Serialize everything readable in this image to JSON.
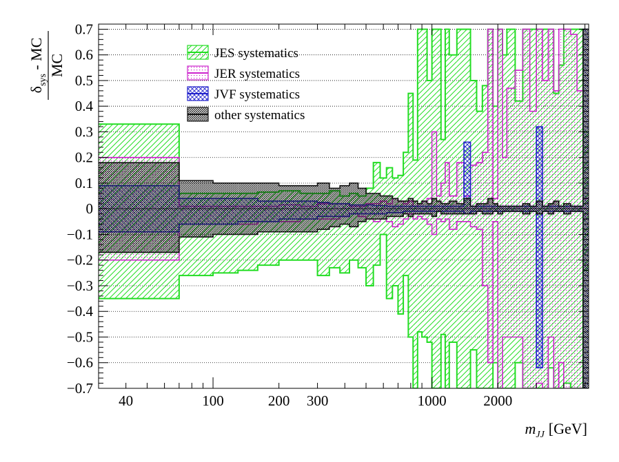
{
  "chart_data": {
    "type": "histogram-band",
    "xlabel": "m_JJ [GeV]",
    "xlabel_main": "m",
    "xlabel_sub": "JJ",
    "xlabel_unit": "[GeV]",
    "ylabel": "(δ_sys - MC)/MC",
    "ylabel_numerator_main": "δ",
    "ylabel_numerator_sub": "sys",
    "ylabel_numerator_rest": " - MC",
    "ylabel_denominator": "MC",
    "x_scale": "log",
    "xlim": [
      30,
      5200
    ],
    "ylim": [
      -0.7,
      0.72
    ],
    "x_ticks": [
      40,
      100,
      200,
      300,
      1000,
      2000
    ],
    "x_tick_labels": [
      "40",
      "100",
      "200",
      "300",
      "1000",
      "2000"
    ],
    "y_ticks": [
      -0.7,
      -0.6,
      -0.5,
      -0.4,
      -0.3,
      -0.2,
      -0.1,
      0,
      0.1,
      0.2,
      0.3,
      0.4,
      0.5,
      0.6,
      0.7
    ],
    "y_tick_labels": [
      "−0.7",
      "−0.6",
      "−0.5",
      "−0.4",
      "−0.3",
      "−0.2",
      "−0.1",
      "0",
      "0.1",
      "0.2",
      "0.3",
      "0.4",
      "0.5",
      "0.6",
      "0.7"
    ],
    "grid": "horizontal dotted",
    "legend_position": "top-left",
    "bin_edges": [
      30,
      70,
      100,
      130,
      160,
      200,
      250,
      300,
      340,
      380,
      420,
      460,
      500,
      540,
      580,
      620,
      660,
      700,
      740,
      780,
      820,
      860,
      900,
      950,
      1000,
      1050,
      1100,
      1150,
      1200,
      1300,
      1400,
      1500,
      1600,
      1700,
      1800,
      1900,
      2000,
      2100,
      2200,
      2400,
      2600,
      2800,
      3000,
      3200,
      3400,
      3600,
      3800,
      4000,
      4300,
      4600,
      4900,
      5200
    ],
    "series": [
      {
        "name": "JES systematics",
        "color": "#22dd22",
        "hatch": "diagonal",
        "upper": [
          0.33,
          0.06,
          0.06,
          0.06,
          0.065,
          0.07,
          0.06,
          0.06,
          0.07,
          0.05,
          0.06,
          0.05,
          0.08,
          0.18,
          0.12,
          0.16,
          0.12,
          0.13,
          0.22,
          0.45,
          0.19,
          0.7,
          0.7,
          0.5,
          0.7,
          0.7,
          0.27,
          0.7,
          0.6,
          0.7,
          0.7,
          0.5,
          0.38,
          0.48,
          0.7,
          0.4,
          0.7,
          0.6,
          0.7,
          0.42,
          0.7,
          0.7,
          0.7,
          0.7,
          0.7,
          0.45,
          0.56,
          0.7,
          0.7,
          0.7,
          0.3
        ],
        "lower": [
          -0.35,
          -0.26,
          -0.25,
          -0.24,
          -0.22,
          -0.2,
          -0.2,
          -0.26,
          -0.23,
          -0.25,
          -0.2,
          -0.23,
          -0.3,
          -0.22,
          -0.1,
          -0.35,
          -0.3,
          -0.41,
          -0.26,
          -0.5,
          -0.7,
          -0.48,
          -0.5,
          -0.52,
          -0.7,
          -0.7,
          -0.49,
          -0.7,
          -0.52,
          -0.7,
          -0.7,
          -0.55,
          -0.7,
          -0.7,
          -0.7,
          -0.6,
          -0.7,
          -0.7,
          -0.7,
          -0.6,
          -0.7,
          -0.7,
          -0.7,
          -0.7,
          -0.62,
          -0.7,
          -0.7,
          -0.68,
          -0.7,
          -0.7,
          -0.24
        ]
      },
      {
        "name": "JER systematics",
        "color": "#cc22cc",
        "hatch": "dots",
        "upper": [
          0.2,
          0.01,
          0.01,
          0.01,
          0.01,
          0.015,
          0.01,
          0.02,
          0.02,
          0.02,
          0.01,
          0.01,
          0.02,
          0.02,
          0.03,
          0.02,
          0.04,
          0.03,
          0.02,
          0.03,
          0.01,
          0.02,
          0.03,
          0.04,
          0.3,
          0.05,
          0.1,
          0.18,
          0.05,
          0.18,
          0.05,
          0.17,
          0.18,
          0.22,
          0.7,
          0.04,
          0.7,
          0.2,
          0.47,
          0.54,
          0.7,
          0.38,
          0.7,
          0.5,
          0.7,
          0.46,
          0.7,
          0.7,
          0.68,
          0.46,
          0.04
        ],
        "lower": [
          -0.2,
          -0.06,
          -0.06,
          -0.06,
          -0.05,
          -0.05,
          -0.04,
          -0.04,
          -0.04,
          -0.03,
          -0.02,
          -0.03,
          -0.04,
          -0.05,
          -0.04,
          -0.05,
          -0.07,
          -0.06,
          -0.04,
          -0.02,
          -0.04,
          -0.03,
          -0.04,
          -0.06,
          -0.1,
          -0.04,
          -0.05,
          -0.04,
          -0.08,
          -0.05,
          -0.05,
          -0.07,
          -0.08,
          -0.3,
          -0.6,
          -0.05,
          -0.7,
          -0.5,
          -0.5,
          -0.5,
          -0.7,
          -0.7,
          -0.68,
          -0.7,
          -0.5,
          -0.7,
          -0.6,
          -0.7,
          -0.7,
          -0.7,
          -0.04
        ]
      },
      {
        "name": "JVF systematics",
        "color": "#2222cc",
        "hatch": "cross",
        "upper": [
          0.09,
          0.04,
          0.04,
          0.04,
          0.03,
          0.03,
          0.03,
          0.025,
          0.02,
          0.02,
          0.015,
          0.015,
          0.015,
          0.012,
          0.012,
          0.01,
          0.01,
          0.01,
          0.01,
          0.01,
          0.01,
          0.01,
          0.01,
          0.01,
          0.01,
          0.01,
          0.01,
          0.01,
          0.01,
          0.01,
          0.26,
          0.01,
          0.01,
          0.01,
          0.01,
          0.01,
          0.01,
          0.01,
          0.01,
          0.01,
          0.01,
          0.01,
          0.32,
          0.01,
          0.01,
          0.01,
          0.01,
          0.01,
          0.01,
          0.01,
          0.7
        ],
        "lower": [
          -0.09,
          -0.06,
          -0.06,
          -0.05,
          -0.05,
          -0.04,
          -0.04,
          -0.03,
          -0.03,
          -0.03,
          -0.02,
          -0.02,
          -0.02,
          -0.02,
          -0.02,
          -0.015,
          -0.015,
          -0.015,
          -0.01,
          -0.01,
          -0.01,
          -0.01,
          -0.01,
          -0.01,
          -0.01,
          -0.01,
          -0.01,
          -0.01,
          -0.01,
          -0.01,
          -0.02,
          -0.01,
          -0.01,
          -0.01,
          -0.01,
          -0.01,
          -0.01,
          -0.01,
          -0.01,
          -0.01,
          -0.01,
          -0.01,
          -0.62,
          -0.01,
          -0.01,
          -0.01,
          -0.01,
          -0.01,
          -0.01,
          -0.01,
          -0.7
        ]
      },
      {
        "name": "other systematics",
        "color": "#111111",
        "hatch": "dense",
        "upper": [
          0.18,
          0.11,
          0.1,
          0.1,
          0.1,
          0.09,
          0.09,
          0.1,
          0.08,
          0.09,
          0.1,
          0.08,
          0.06,
          0.06,
          0.05,
          0.05,
          0.04,
          0.03,
          0.03,
          0.04,
          0.03,
          0.02,
          0.03,
          0.02,
          0.04,
          0.03,
          0.02,
          0.02,
          0.03,
          0.02,
          0.04,
          0.01,
          0.02,
          0.02,
          0.04,
          0.02,
          0.01,
          0.01,
          0.01,
          0.01,
          0.02,
          0.01,
          0.03,
          0.01,
          0.02,
          0.03,
          0.01,
          0.02,
          0.01,
          0.01,
          0.7
        ],
        "lower": [
          -0.17,
          -0.11,
          -0.1,
          -0.1,
          -0.09,
          -0.09,
          -0.09,
          -0.08,
          -0.07,
          -0.06,
          -0.07,
          -0.05,
          -0.04,
          -0.04,
          -0.04,
          -0.03,
          -0.03,
          -0.03,
          -0.02,
          -0.03,
          -0.02,
          -0.02,
          -0.02,
          -0.02,
          -0.03,
          -0.01,
          -0.02,
          -0.02,
          -0.02,
          -0.02,
          -0.02,
          -0.02,
          -0.01,
          -0.02,
          -0.02,
          -0.01,
          -0.02,
          -0.01,
          -0.01,
          -0.01,
          -0.02,
          -0.01,
          -0.02,
          -0.01,
          -0.02,
          -0.01,
          -0.01,
          -0.02,
          -0.01,
          -0.01,
          -0.7
        ]
      }
    ]
  }
}
